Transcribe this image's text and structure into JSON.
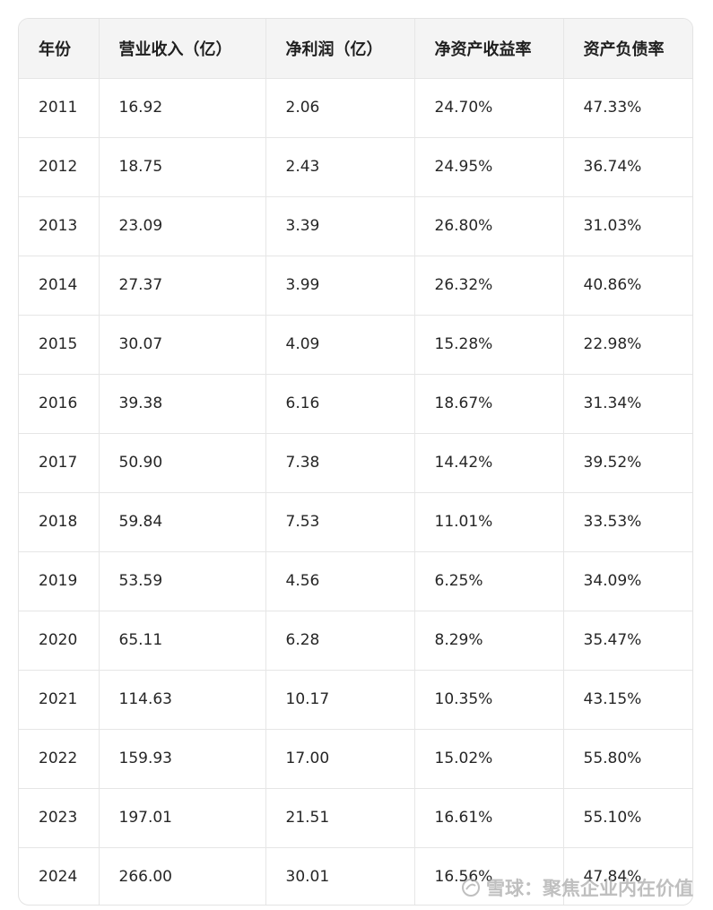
{
  "table": {
    "headers": [
      "年份",
      "营业收入（亿）",
      "净利润（亿）",
      "净资产收益率",
      "资产负债率"
    ],
    "rows": [
      [
        "2011",
        "16.92",
        "2.06",
        "24.70%",
        "47.33%"
      ],
      [
        "2012",
        "18.75",
        "2.43",
        "24.95%",
        "36.74%"
      ],
      [
        "2013",
        "23.09",
        "3.39",
        "26.80%",
        "31.03%"
      ],
      [
        "2014",
        "27.37",
        "3.99",
        "26.32%",
        "40.86%"
      ],
      [
        "2015",
        "30.07",
        "4.09",
        "15.28%",
        "22.98%"
      ],
      [
        "2016",
        "39.38",
        "6.16",
        "18.67%",
        "31.34%"
      ],
      [
        "2017",
        "50.90",
        "7.38",
        "14.42%",
        "39.52%"
      ],
      [
        "2018",
        "59.84",
        "7.53",
        "11.01%",
        "33.53%"
      ],
      [
        "2019",
        "53.59",
        "4.56",
        "6.25%",
        "34.09%"
      ],
      [
        "2020",
        "65.11",
        "6.28",
        "8.29%",
        "35.47%"
      ],
      [
        "2021",
        "114.63",
        "10.17",
        "10.35%",
        "43.15%"
      ],
      [
        "2022",
        "159.93",
        "17.00",
        "15.02%",
        "55.80%"
      ],
      [
        "2023",
        "197.01",
        "21.51",
        "16.61%",
        "55.10%"
      ],
      [
        "2024",
        "266.00",
        "30.01",
        "16.56%",
        "47.84%"
      ]
    ]
  },
  "watermark": {
    "text": "雪球：聚焦企业内在价值",
    "icon": "snowball-logo-icon"
  }
}
